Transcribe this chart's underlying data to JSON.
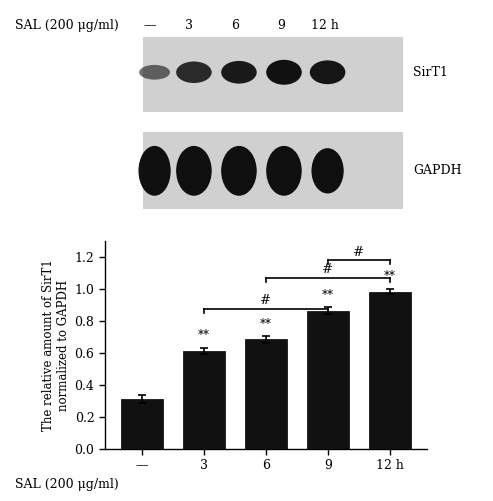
{
  "bar_values": [
    0.315,
    0.615,
    0.685,
    0.865,
    0.985
  ],
  "bar_errors": [
    0.025,
    0.018,
    0.02,
    0.022,
    0.018
  ],
  "bar_color": "#111111",
  "categories": [
    "—",
    "3",
    "6",
    "9",
    "12 h"
  ],
  "ylabel": "The relative amount of SirT1\nnormalized to GAPDH",
  "ylim": [
    0,
    1.3
  ],
  "yticks": [
    0.0,
    0.2,
    0.4,
    0.6,
    0.8,
    1.0,
    1.2
  ],
  "background_color": "#ffffff",
  "sirt1_label": "SirT1",
  "gapdh_label": "GAPDH",
  "wb_top_label": "SAL (200 μg/ml)",
  "wb_time_labels": [
    "—",
    "3",
    "6",
    "9",
    "12 h"
  ],
  "bottom_xlabel": "SAL (200 μg/ml)"
}
